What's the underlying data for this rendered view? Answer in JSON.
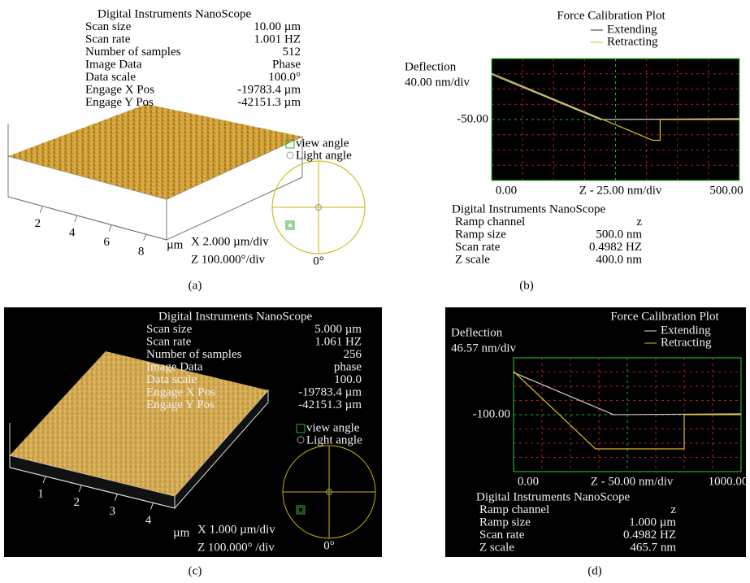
{
  "panels": [
    {
      "kind": "image",
      "caption": "(a)",
      "info_title": "Digital Instruments NanoScope",
      "info_rows": [
        [
          "Scan size",
          "10.00 µm"
        ],
        [
          "Scan rate",
          "1.001 HZ"
        ],
        [
          "Number of samples",
          "512"
        ],
        [
          "Image Data",
          "Phase"
        ],
        [
          "Data scale",
          "100.0°"
        ],
        [
          "Engage X Pos",
          "-19783.4 µm"
        ],
        [
          "Engage Y Pos",
          "-42151.3 µm"
        ]
      ],
      "axis_ticks": [
        "2",
        "4",
        "6",
        "8"
      ],
      "axis_unit": "µm",
      "scale_x": "X 2.000 µm/div",
      "scale_z": "Z 100.000°/div",
      "view_angle": "view angle",
      "light_angle": "Light angle",
      "angle_zero": "0°"
    },
    {
      "kind": "force",
      "caption": "(b)",
      "title": "Force Calibration Plot",
      "legend": [
        "Extending",
        "Retracting"
      ],
      "y_label": "Deflection",
      "y_scale": "40.00 nm/div",
      "y_tick": "-50.00",
      "x_start": "0.00",
      "x_label": "Z - 25.00 nm/div",
      "x_end": "500.00",
      "info_title": "Digital Instruments NanoScope",
      "info_rows": [
        [
          "Ramp channel",
          "z"
        ],
        [
          "Ramp size",
          "500.0 nm"
        ],
        [
          "Scan rate",
          "0.4982 HZ"
        ],
        [
          "Z scale",
          "400.0 nm"
        ]
      ]
    },
    {
      "kind": "image",
      "caption": "(c)",
      "info_title": "Digital Instruments NanoScope",
      "info_rows": [
        [
          "Scan size",
          "5.000 µm"
        ],
        [
          "Scan rate",
          "1.061 HZ"
        ],
        [
          "Number of samples",
          "256"
        ],
        [
          "Image Data",
          "phase"
        ],
        [
          "Data scale",
          "100.0"
        ],
        [
          "Engage X Pos",
          "-19783.4 µm"
        ],
        [
          "Engage Y Pos",
          "-42151.3 µm"
        ]
      ],
      "axis_ticks": [
        "1",
        "2",
        "3",
        "4"
      ],
      "axis_unit": "µm",
      "scale_x": "X 1.000 µm/div",
      "scale_z": "Z 100.000° /div",
      "view_angle": "view angle",
      "light_angle": "Light angle",
      "angle_zero": "0°"
    },
    {
      "kind": "force",
      "caption": "(d)",
      "title": "Force Calibration Plot",
      "legend": [
        "Extending",
        "Retracting"
      ],
      "y_label": "Deflection",
      "y_scale": "46.57 nm/div",
      "y_tick": "-100.00",
      "x_start": "0.00",
      "x_label": "Z - 50.00 nm/div",
      "x_end": "1000.00",
      "info_title": "Digital Instruments NanoScope",
      "info_rows": [
        [
          "Ramp channel",
          "z"
        ],
        [
          "Ramp size",
          "1.000 µm"
        ],
        [
          "Scan rate",
          "0.4982 HZ"
        ],
        [
          "Z scale",
          "465.7 nm"
        ]
      ]
    }
  ]
}
